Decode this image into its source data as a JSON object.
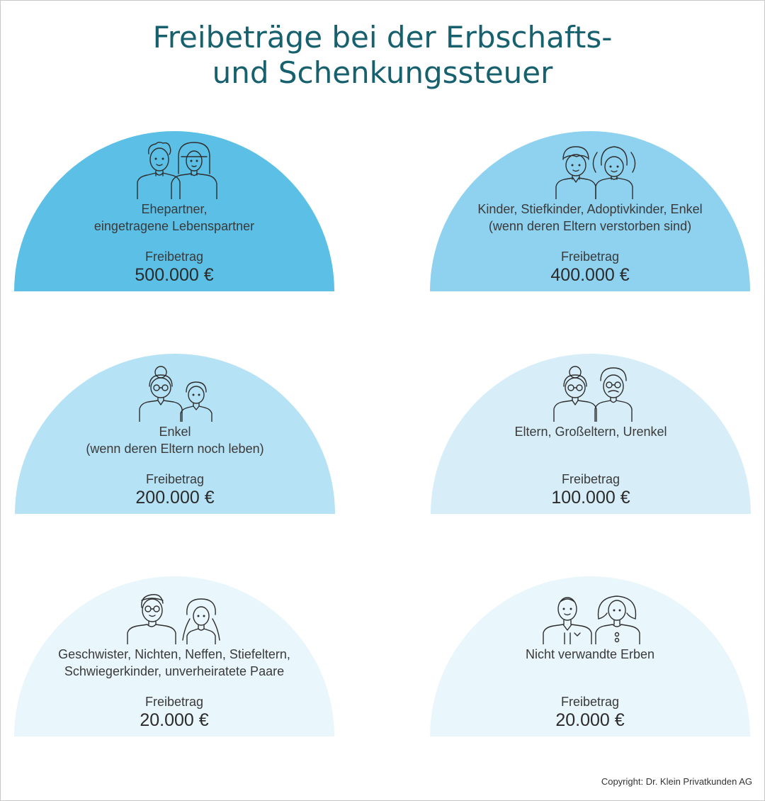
{
  "title": {
    "line1": "Freibeträge bei der Erbschafts-",
    "line2": "und Schenkungssteuer"
  },
  "cards": [
    {
      "label_lines": [
        "Ehepartner,",
        "eingetragene Lebenspartner"
      ],
      "freibetrag_label": "Freibetrag",
      "amount": "500.000 €",
      "color": "#5bbfe6",
      "icons": [
        "man-icon",
        "woman-icon"
      ]
    },
    {
      "label_lines": [
        "Kinder, Stiefkinder, Adoptivkinder, Enkel",
        "(wenn deren Eltern verstorben sind)"
      ],
      "freibetrag_label": "Freibetrag",
      "amount": "400.000 €",
      "color": "#8fd2f0",
      "icons": [
        "boy-icon",
        "girl-icon"
      ]
    },
    {
      "label_lines": [
        "Enkel",
        "(wenn deren Eltern noch leben)"
      ],
      "freibetrag_label": "Freibetrag",
      "amount": "200.000 €",
      "color": "#b6e2f5",
      "icons": [
        "grandmother-icon",
        "boy-icon"
      ]
    },
    {
      "label_lines": [
        "Eltern, Großeltern, Urenkel"
      ],
      "freibetrag_label": "Freibetrag",
      "amount": "100.000 €",
      "color": "#d7eef9",
      "icons": [
        "grandmother-icon",
        "grandfather-icon"
      ]
    },
    {
      "label_lines": [
        "Geschwister, Nichten, Neffen, Stiefeltern,",
        "Schwiegerkinder, unverheiratete Paare"
      ],
      "freibetrag_label": "Freibetrag",
      "amount": "20.000 €",
      "color": "#e9f6fb",
      "icons": [
        "man-with-glasses-icon",
        "girl-with-braids-icon"
      ]
    },
    {
      "label_lines": [
        "Nicht verwandte Erben"
      ],
      "freibetrag_label": "Freibetrag",
      "amount": "20.000 €",
      "color": "#e9f6fb",
      "icons": [
        "man-in-suit-icon",
        "woman-icon"
      ]
    }
  ],
  "copyright": "Copyright: Dr. Klein Privatkunden AG"
}
